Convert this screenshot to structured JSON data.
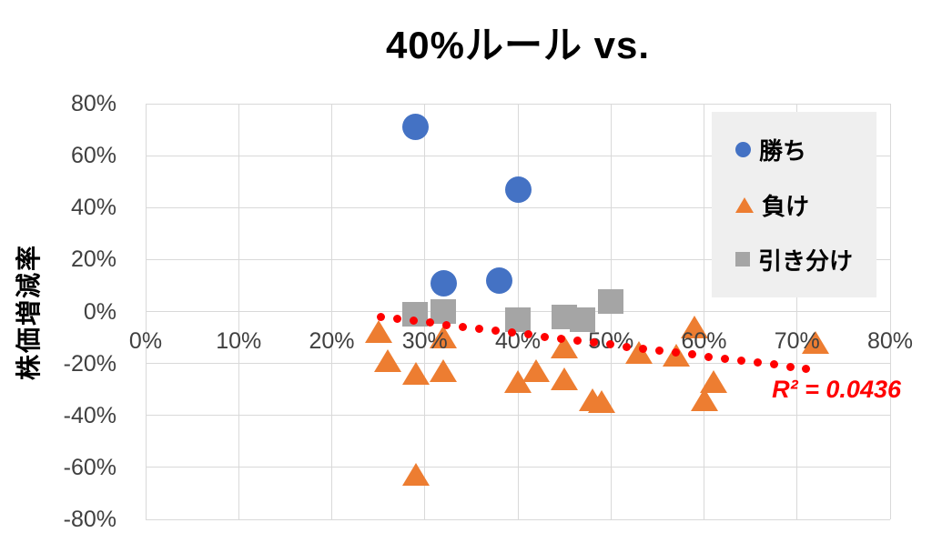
{
  "chart_data": {
    "type": "scatter",
    "title": "40%ルール vs.",
    "xlabel": "",
    "ylabel": "株価増減率",
    "xlim": [
      0,
      80
    ],
    "ylim": [
      -80,
      80
    ],
    "x_tick_step": 10,
    "y_tick_step": 20,
    "x_tick_labels": [
      "0%",
      "10%",
      "20%",
      "30%",
      "40%",
      "50%",
      "60%",
      "70%",
      "80%"
    ],
    "y_tick_labels": [
      "80%",
      "60%",
      "40%",
      "20%",
      "0%",
      "-20%",
      "-40%",
      "-60%",
      "-80%"
    ],
    "grid": true,
    "legend_position": "top-right-overlay",
    "series": [
      {
        "name": "勝ち",
        "key": "win",
        "marker": "circle",
        "color": "#4472C4",
        "points": [
          [
            29,
            71
          ],
          [
            40,
            47
          ],
          [
            32,
            11
          ],
          [
            38,
            12
          ]
        ]
      },
      {
        "name": "負け",
        "key": "lose",
        "marker": "triangle",
        "color": "#ED7D31",
        "points": [
          [
            25,
            -8
          ],
          [
            26,
            -19
          ],
          [
            29,
            -24
          ],
          [
            32,
            -10
          ],
          [
            32,
            -23
          ],
          [
            29,
            -63
          ],
          [
            40,
            -27
          ],
          [
            42,
            -23
          ],
          [
            45,
            -14
          ],
          [
            45,
            -26
          ],
          [
            48,
            -34
          ],
          [
            49,
            -35
          ],
          [
            53,
            -16
          ],
          [
            57,
            -17
          ],
          [
            59,
            -6
          ],
          [
            60,
            -34
          ],
          [
            61,
            -27
          ],
          [
            72,
            -12
          ]
        ]
      },
      {
        "name": "引き分け",
        "key": "draw",
        "marker": "square",
        "color": "#A5A5A5",
        "points": [
          [
            29,
            -1
          ],
          [
            32,
            0
          ],
          [
            40,
            -3
          ],
          [
            45,
            -2
          ],
          [
            47,
            -3
          ],
          [
            50,
            4
          ]
        ]
      }
    ],
    "trendline": {
      "type": "linear-dotted",
      "color": "#FF0000",
      "start": [
        25.3,
        -2
      ],
      "end": [
        71,
        -22
      ],
      "dot_count": 27,
      "r2_label": "R² = 0.0436"
    }
  },
  "colors": {
    "grid": "#D9D9D9",
    "tick_label": "#404040",
    "title": "#000000",
    "legend_bg": "#EFEFEF",
    "trendline": "#FF0000"
  }
}
